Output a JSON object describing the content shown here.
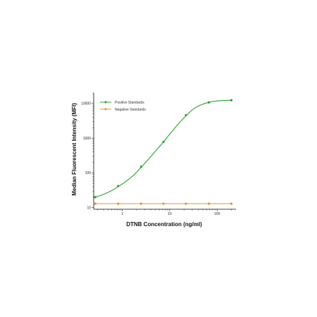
{
  "chart_data": {
    "type": "line",
    "xlabel": "DTNB Concentration (ng/ml)",
    "ylabel": "Median Fluorescent Intensity  (MFI)",
    "x_scale": "log",
    "y_scale": "log",
    "xlim": [
      0.25,
      250
    ],
    "ylim": [
      9,
      20000
    ],
    "x_ticks": [
      {
        "value": 1,
        "label": "1"
      },
      {
        "value": 10,
        "label": "10"
      },
      {
        "value": 100,
        "label": "100"
      }
    ],
    "y_ticks": [
      {
        "value": 10,
        "label": "10"
      },
      {
        "value": 100,
        "label": "100"
      },
      {
        "value": 1000,
        "label": "1000"
      },
      {
        "value": 10000,
        "label": "10000"
      }
    ],
    "legend_position": "top-left",
    "grid": false,
    "series": [
      {
        "name": "Positive Standards",
        "color": "#2ca02c",
        "x": [
          0.27,
          0.82,
          2.5,
          7.4,
          22,
          67,
          200
        ],
        "y": [
          20,
          42,
          150,
          780,
          4600,
          10700,
          12400
        ],
        "curve_x": [
          0.27,
          0.4,
          0.6,
          0.82,
          1.2,
          1.8,
          2.5,
          3.5,
          5,
          7.4,
          10,
          15,
          22,
          32,
          45,
          67,
          100,
          140,
          200
        ],
        "curve_y": [
          20,
          24,
          31,
          40,
          57,
          90,
          145,
          240,
          420,
          780,
          1300,
          2500,
          4400,
          7000,
          9000,
          10800,
          11800,
          12200,
          12400
        ]
      },
      {
        "name": "Negative Standards",
        "color": "#e8902e",
        "x": [
          0.27,
          0.82,
          2.5,
          7.4,
          22,
          67,
          200
        ],
        "y": [
          13,
          13,
          13,
          13,
          13,
          13,
          13
        ]
      }
    ]
  }
}
